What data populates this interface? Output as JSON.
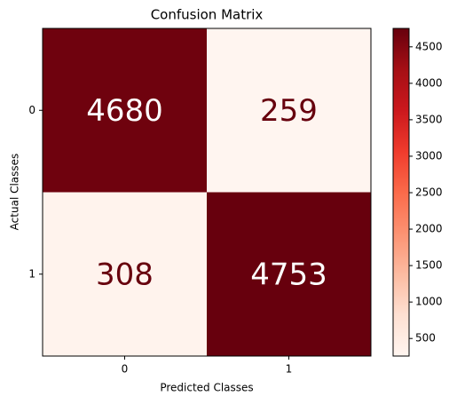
{
  "chart_data": {
    "type": "heatmap",
    "title": "Confusion Matrix",
    "x_label": "Predicted Classes",
    "y_label": "Actual Classes",
    "x_categories": [
      "0",
      "1"
    ],
    "y_categories": [
      "0",
      "1"
    ],
    "values": [
      [
        4680,
        259
      ],
      [
        308,
        4753
      ]
    ],
    "colormap": [
      "#fff5f0",
      "#fee0d2",
      "#fcbba1",
      "#fc9272",
      "#fb6a4a",
      "#ef3b2c",
      "#cb181d",
      "#a50f15",
      "#67000d"
    ],
    "clim": [
      259,
      4753
    ],
    "colorbar_ticks": [
      500,
      1000,
      1500,
      2000,
      2500,
      3000,
      3500,
      4000,
      4500
    ]
  }
}
